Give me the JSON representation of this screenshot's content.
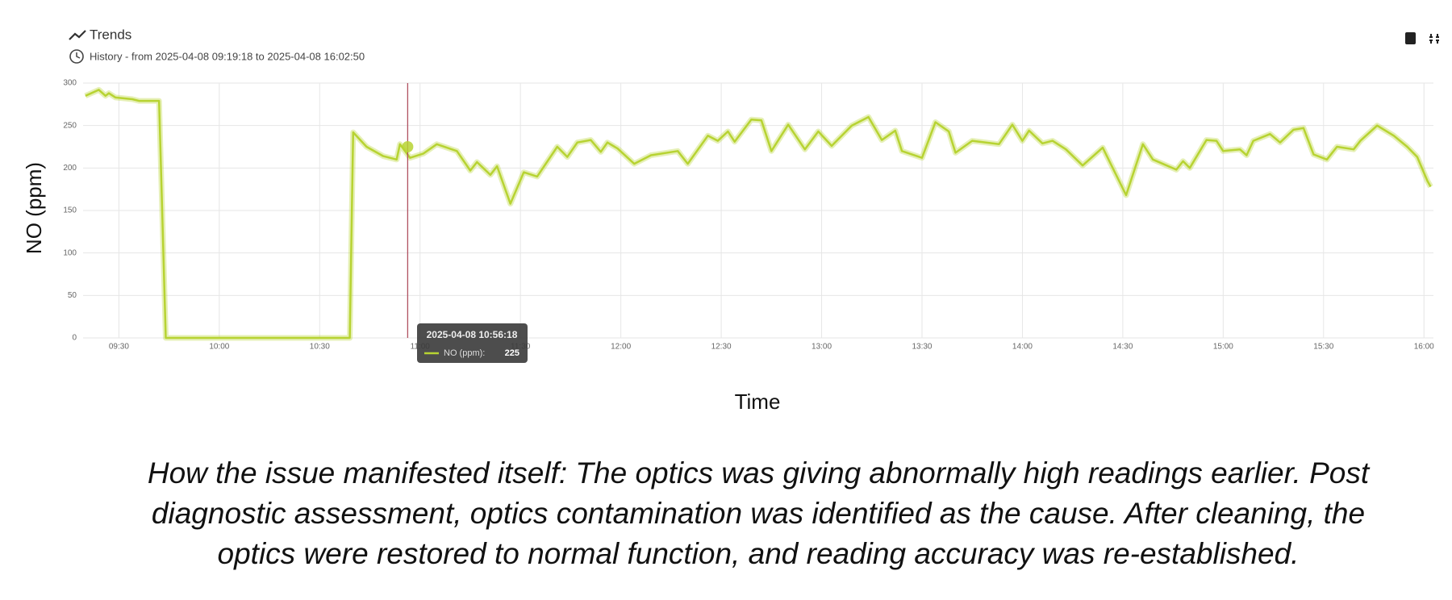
{
  "chart_data": {
    "type": "line",
    "title": "Trends",
    "subtitle": "History - from 2025-04-08 09:19:18 to 2025-04-08 16:02:50",
    "y_label": "NO (ppm)",
    "x_label": "Time",
    "x": [
      "09:20",
      "09:24",
      "09:26",
      "09:27",
      "09:29",
      "09:34",
      "09:36",
      "09:42",
      "09:44",
      "10:39",
      "10:40",
      "10:44",
      "10:49",
      "10:53",
      "10:54",
      "10:57",
      "11:01",
      "11:05",
      "11:11",
      "11:15",
      "11:17",
      "11:21",
      "11:23",
      "11:27",
      "11:31",
      "11:35",
      "11:41",
      "11:44",
      "11:47",
      "11:51",
      "11:54",
      "11:56",
      "11:59",
      "12:04",
      "12:09",
      "12:17",
      "12:20",
      "12:26",
      "12:29",
      "12:32",
      "12:34",
      "12:39",
      "12:42",
      "12:45",
      "12:50",
      "12:55",
      "12:59",
      "13:03",
      "13:09",
      "13:14",
      "13:18",
      "13:22",
      "13:24",
      "13:30",
      "13:34",
      "13:38",
      "13:40",
      "13:45",
      "13:53",
      "13:57",
      "14:00",
      "14:02",
      "14:06",
      "14:09",
      "14:13",
      "14:18",
      "14:24",
      "14:31",
      "14:36",
      "14:39",
      "14:46",
      "14:48",
      "14:50",
      "14:55",
      "14:58",
      "15:00",
      "15:05",
      "15:07",
      "15:09",
      "15:14",
      "15:17",
      "15:21",
      "15:24",
      "15:27",
      "15:31",
      "15:34",
      "15:39",
      "15:41",
      "15:46",
      "15:51",
      "15:55",
      "15:58",
      "16:01",
      "16:02"
    ],
    "series": [
      {
        "name": "NO (ppm):",
        "color": "#b7d332",
        "values": [
          285,
          292,
          285,
          288,
          283,
          281,
          279,
          279,
          0,
          0,
          242,
          225,
          214,
          210,
          228,
          212,
          217,
          228,
          220,
          197,
          207,
          192,
          202,
          158,
          195,
          190,
          225,
          213,
          230,
          233,
          219,
          230,
          223,
          205,
          215,
          220,
          205,
          238,
          232,
          243,
          231,
          257,
          256,
          220,
          251,
          222,
          243,
          226,
          250,
          260,
          233,
          244,
          220,
          212,
          254,
          243,
          218,
          232,
          228,
          251,
          232,
          244,
          229,
          232,
          222,
          203,
          224,
          168,
          228,
          210,
          198,
          208,
          200,
          233,
          232,
          220,
          222,
          215,
          232,
          240,
          230,
          245,
          247,
          216,
          210,
          225,
          222,
          232,
          250,
          238,
          225,
          213,
          185,
          178
        ]
      }
    ],
    "xlim": [
      "09:19:18",
      "16:02:50"
    ],
    "xticks": [
      "09:30",
      "10:00",
      "10:30",
      "11:00",
      "11:30",
      "12:00",
      "12:30",
      "13:00",
      "13:30",
      "14:00",
      "14:30",
      "15:00",
      "15:30",
      "16:00"
    ],
    "ylim": [
      0,
      300
    ],
    "yticks": [
      0,
      50,
      100,
      150,
      200,
      250,
      300
    ],
    "grid": true,
    "tooltip": {
      "time": "2025-04-08 10:56:18",
      "value": 225
    }
  },
  "caption": [
    "How the issue manifested itself: The optics was giving abnormally high readings earlier. Post",
    "diagnostic assessment, optics contamination was identified as the cause. After cleaning, the",
    "optics were restored to normal function, and reading accuracy was re-established."
  ]
}
